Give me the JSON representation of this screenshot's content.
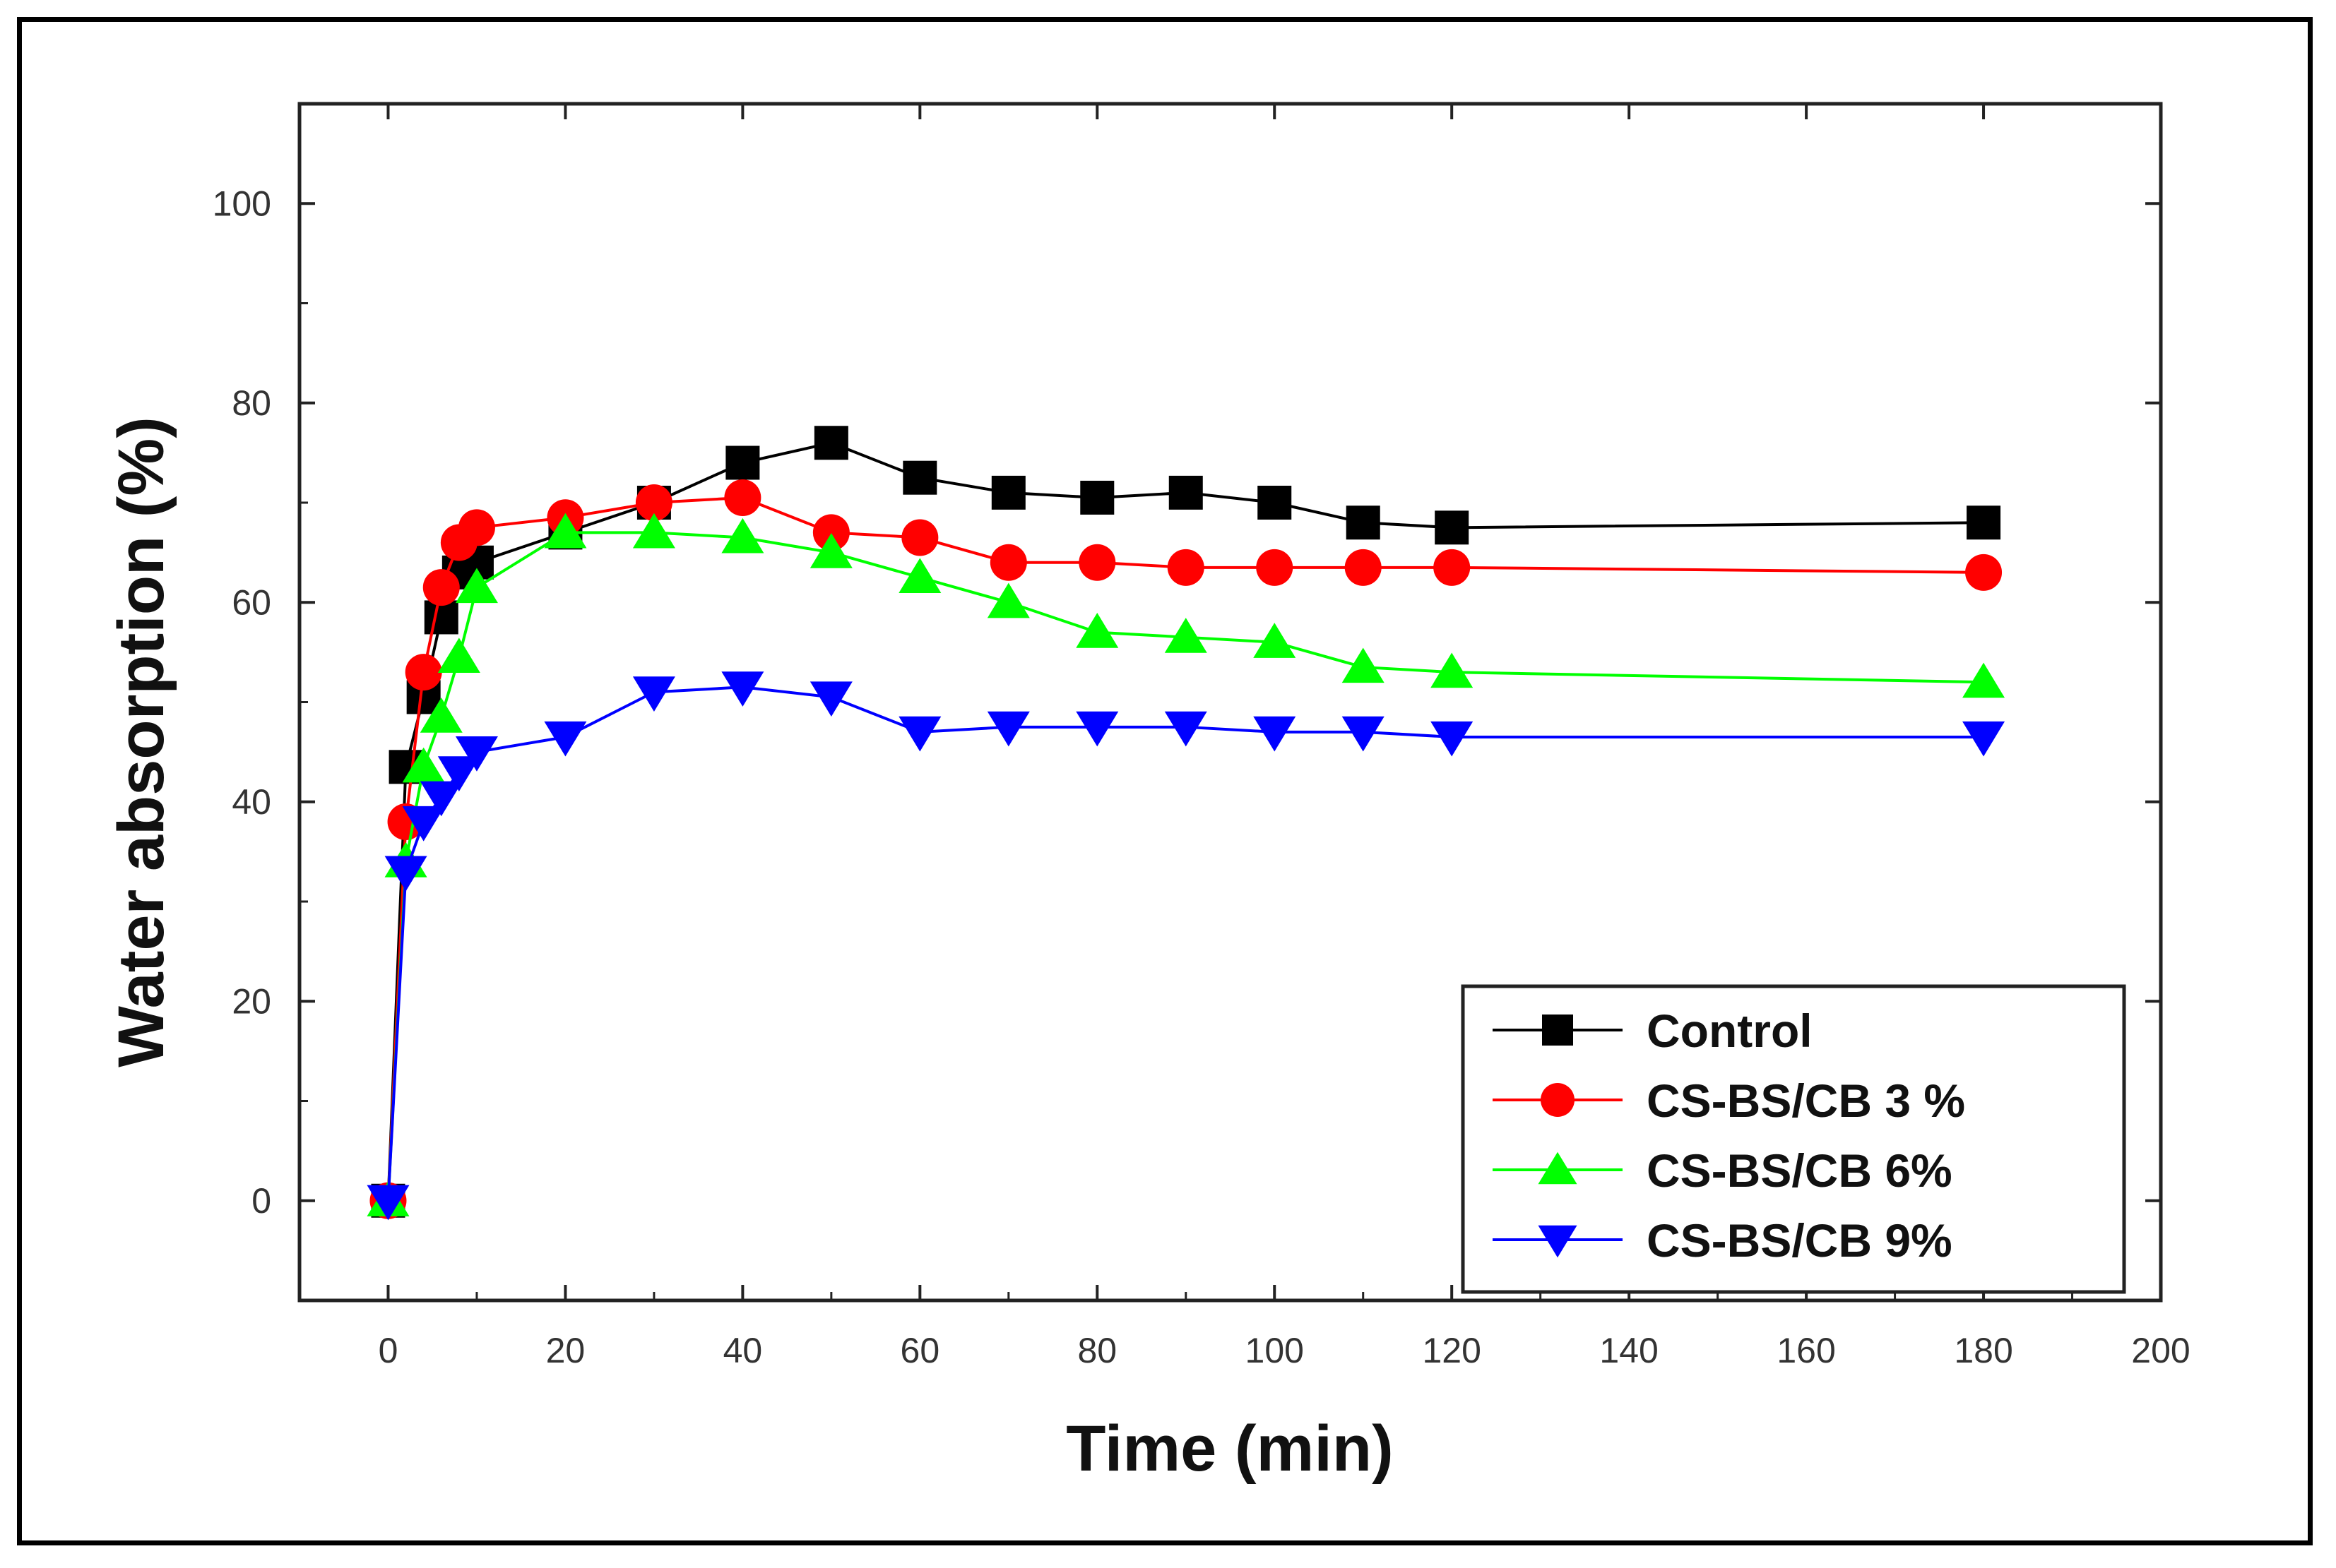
{
  "chart_data": {
    "type": "line",
    "title": "",
    "xlabel": "Time (min)",
    "ylabel": "Water absorption (%)",
    "xlim": [
      -10,
      200
    ],
    "ylim": [
      -10,
      110
    ],
    "xticks": [
      0,
      20,
      40,
      60,
      80,
      100,
      120,
      140,
      160,
      180,
      200
    ],
    "yticks": [
      0,
      20,
      40,
      60,
      80,
      100
    ],
    "grid": false,
    "legend_position": "bottom-right",
    "series": [
      {
        "name": "Control",
        "color": "#000000",
        "marker": "square",
        "x": [
          0,
          2,
          4,
          6,
          8,
          10,
          20,
          30,
          40,
          50,
          60,
          70,
          80,
          90,
          100,
          110,
          120,
          180
        ],
        "y": [
          0,
          43.5,
          50.5,
          58.5,
          63,
          64,
          67,
          70,
          74,
          76,
          72.5,
          71,
          70.5,
          71,
          70,
          68,
          67.5,
          68
        ]
      },
      {
        "name": "CS-BS/CB 3 %",
        "color": "#ff0000",
        "marker": "circle",
        "x": [
          0,
          2,
          4,
          6,
          8,
          10,
          20,
          30,
          40,
          50,
          60,
          70,
          80,
          90,
          100,
          110,
          120,
          180
        ],
        "y": [
          0,
          38,
          53,
          61.5,
          66,
          67.5,
          68.5,
          70,
          70.5,
          67,
          66.5,
          64,
          64,
          63.5,
          63.5,
          63.5,
          63.5,
          63
        ]
      },
      {
        "name": "CS-BS/CB 6%",
        "color": "#00ff00",
        "marker": "triangle-up",
        "x": [
          0,
          2,
          4,
          6,
          8,
          10,
          20,
          30,
          40,
          50,
          60,
          70,
          80,
          90,
          100,
          110,
          120,
          180
        ],
        "y": [
          0,
          34,
          43.5,
          48.5,
          54.5,
          61.5,
          67,
          67,
          66.5,
          65,
          62.5,
          60,
          57,
          56.5,
          56,
          53.5,
          53,
          52
        ]
      },
      {
        "name": "CS-BS/CB 9%",
        "color": "#0000ff",
        "marker": "triangle-down",
        "x": [
          0,
          2,
          4,
          6,
          8,
          10,
          20,
          30,
          40,
          50,
          60,
          70,
          80,
          90,
          100,
          110,
          120,
          180
        ],
        "y": [
          0,
          33,
          38,
          40.5,
          43,
          45,
          46.5,
          51,
          51.5,
          50.5,
          47,
          47.5,
          47.5,
          47.5,
          47,
          47,
          46.5,
          46.5
        ]
      }
    ]
  }
}
